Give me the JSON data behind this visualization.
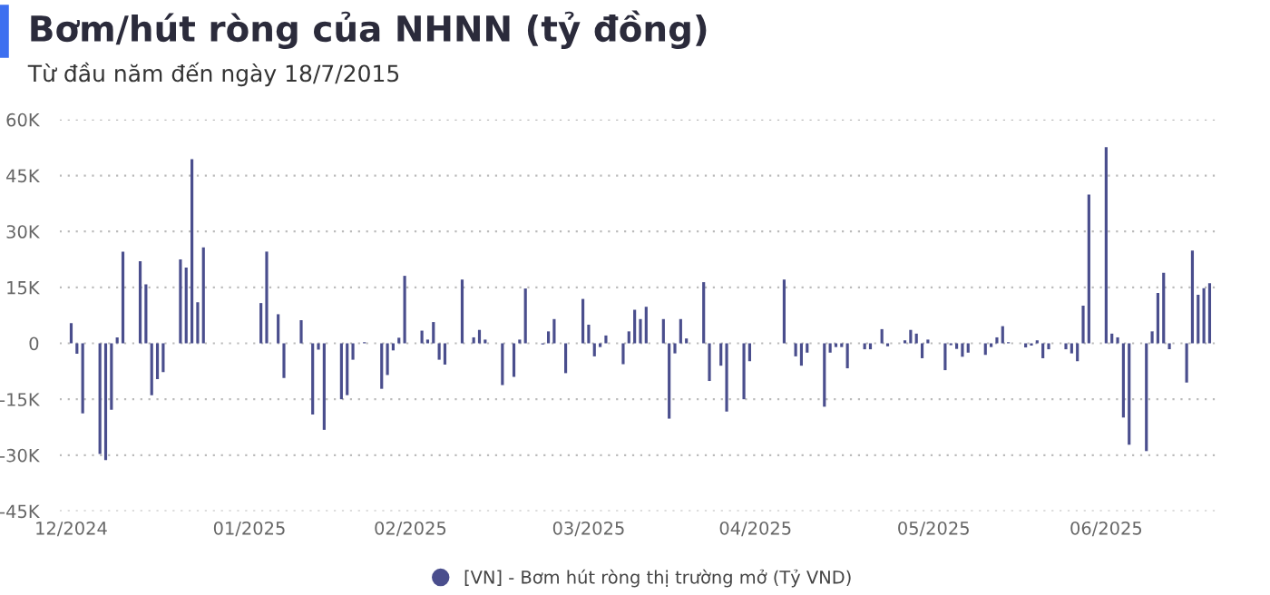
{
  "chart_data": {
    "type": "bar",
    "title": "Bơm/hút ròng của NHNN (tỷ đồng)",
    "subtitle": "Từ đầu năm đến ngày 18/7/2015",
    "x": [
      "2024-12-04",
      "2024-12-05",
      "2024-12-06",
      "2024-12-09",
      "2024-12-10",
      "2024-12-11",
      "2024-12-12",
      "2024-12-13",
      "2024-12-16",
      "2024-12-17",
      "2024-12-18",
      "2024-12-19",
      "2024-12-20",
      "2024-12-23",
      "2024-12-24",
      "2024-12-25",
      "2024-12-26",
      "2024-12-27",
      "2025-01-06",
      "2025-01-07",
      "2025-01-09",
      "2025-01-10",
      "2025-01-13",
      "2025-01-15",
      "2025-01-16",
      "2025-01-17",
      "2025-01-20",
      "2025-01-21",
      "2025-01-22",
      "2025-01-24",
      "2025-01-27",
      "2025-01-28",
      "2025-01-29",
      "2025-01-30",
      "2025-01-31",
      "2025-02-03",
      "2025-02-04",
      "2025-02-05",
      "2025-02-06",
      "2025-02-07",
      "2025-02-10",
      "2025-02-12",
      "2025-02-13",
      "2025-02-14",
      "2025-02-17",
      "2025-02-19",
      "2025-02-20",
      "2025-02-21",
      "2025-02-24",
      "2025-02-25",
      "2025-02-26",
      "2025-02-28",
      "2025-03-03",
      "2025-03-04",
      "2025-03-05",
      "2025-03-06",
      "2025-03-07",
      "2025-03-10",
      "2025-03-11",
      "2025-03-12",
      "2025-03-13",
      "2025-03-14",
      "2025-03-17",
      "2025-03-18",
      "2025-03-19",
      "2025-03-20",
      "2025-03-21",
      "2025-03-24",
      "2025-03-25",
      "2025-03-27",
      "2025-03-28",
      "2025-03-31",
      "2025-04-01",
      "2025-04-07",
      "2025-04-09",
      "2025-04-10",
      "2025-04-11",
      "2025-04-14",
      "2025-04-15",
      "2025-04-16",
      "2025-04-17",
      "2025-04-18",
      "2025-04-21",
      "2025-04-22",
      "2025-04-24",
      "2025-04-25",
      "2025-04-28",
      "2025-04-29",
      "2025-04-30",
      "2025-05-01",
      "2025-05-02",
      "2025-05-05",
      "2025-05-06",
      "2025-05-07",
      "2025-05-08",
      "2025-05-09",
      "2025-05-12",
      "2025-05-13",
      "2025-05-14",
      "2025-05-15",
      "2025-05-16",
      "2025-05-19",
      "2025-05-20",
      "2025-05-21",
      "2025-05-22",
      "2025-05-23",
      "2025-05-26",
      "2025-05-27",
      "2025-05-28",
      "2025-05-29",
      "2025-05-30",
      "2025-06-02",
      "2025-06-03",
      "2025-06-04",
      "2025-06-05",
      "2025-06-06",
      "2025-06-09",
      "2025-06-10",
      "2025-06-11",
      "2025-06-12",
      "2025-06-13",
      "2025-06-16",
      "2025-06-17",
      "2025-06-18",
      "2025-06-19",
      "2025-06-20"
    ],
    "series": [
      {
        "name": "[VN] - Bơm hút ròng thị trường mở (Tỷ VND)",
        "color": "#4a4e8d",
        "values": [
          5400,
          -2800,
          -18800,
          -29700,
          -31300,
          -17800,
          1600,
          24600,
          22000,
          15800,
          -13900,
          -9600,
          -7700,
          22500,
          20300,
          49400,
          11000,
          25700,
          10800,
          24600,
          7800,
          -9300,
          6200,
          -19100,
          -1700,
          -23200,
          -15000,
          -13900,
          -4400,
          300,
          -12200,
          -8500,
          -1900,
          1500,
          18100,
          3400,
          1000,
          5700,
          -4400,
          -5700,
          17100,
          1600,
          3600,
          1000,
          -11200,
          -9000,
          1000,
          14700,
          -300,
          3200,
          6500,
          -8000,
          11900,
          5000,
          -3500,
          -1000,
          2100,
          -5600,
          3200,
          9000,
          6500,
          9800,
          6500,
          -20200,
          -2700,
          6500,
          1300,
          16400,
          -10100,
          -6000,
          -18300,
          -15000,
          -4800,
          17100,
          -3500,
          -6000,
          -2500,
          -17000,
          -2500,
          -1000,
          -1000,
          -6700,
          -1600,
          -1600,
          3800,
          -800,
          800,
          3600,
          2600,
          -4000,
          1000,
          -7200,
          -500,
          -1500,
          -3600,
          -2500,
          -3100,
          -1000,
          1600,
          4600,
          300,
          -1100,
          -600,
          800,
          -4000,
          -1600,
          -1600,
          -2700,
          -4800,
          10100,
          39900,
          52600,
          2600,
          1600,
          -19900,
          -27200,
          -28900,
          3200,
          13500,
          18900,
          -1600,
          -10500,
          24900,
          13000,
          14800,
          16100
        ]
      }
    ],
    "xlim": [
      "2024-12-02",
      "2025-06-21"
    ],
    "xticks": [
      {
        "value": "2024-12-04",
        "label": "12/2024"
      },
      {
        "value": "2025-01-04",
        "label": "01/2025"
      },
      {
        "value": "2025-02-01",
        "label": "02/2025"
      },
      {
        "value": "2025-03-04",
        "label": "03/2025"
      },
      {
        "value": "2025-04-02",
        "label": "04/2025"
      },
      {
        "value": "2025-05-03",
        "label": "05/2025"
      },
      {
        "value": "2025-06-02",
        "label": "06/2025"
      }
    ],
    "ylim": [
      -45000,
      60000
    ],
    "yticks": [
      {
        "value": -45000,
        "label": "-45K"
      },
      {
        "value": -30000,
        "label": "-30K"
      },
      {
        "value": -15000,
        "label": "-15K"
      },
      0,
      {
        "value": 15000,
        "label": "15K"
      },
      {
        "value": 30000,
        "label": "30K"
      },
      {
        "value": 45000,
        "label": "45K"
      },
      {
        "value": 60000,
        "label": "60K"
      }
    ],
    "grid": "y",
    "legend": "bottom"
  }
}
